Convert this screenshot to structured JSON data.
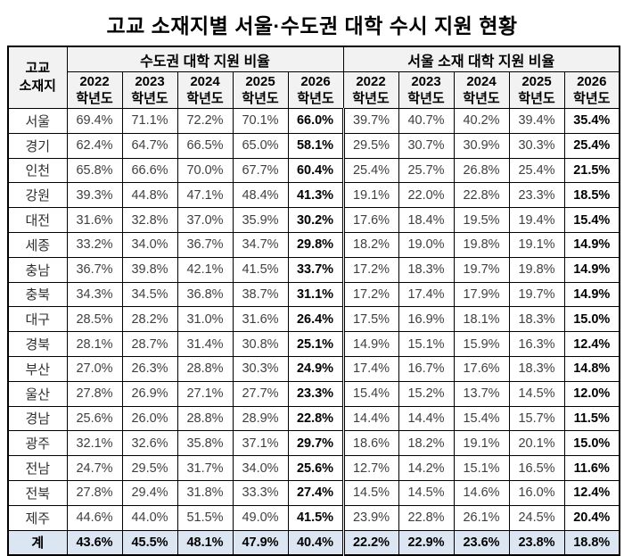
{
  "colors": {
    "header_bg": "#f2f2f2",
    "total_row_bg": "#dce6f2",
    "border": "#000000",
    "value_text": "#3f3f3f",
    "bold_text": "#000000"
  },
  "chart_data": {
    "type": "table",
    "title": "고교 소재지별 서울·수도권 대학 수시 지원 현황",
    "row_header": [
      "고교",
      "소재지"
    ],
    "column_groups": [
      "수도권 대학 지원 비율",
      "서울 소재 대학 지원 비율"
    ],
    "years": [
      "2022",
      "2023",
      "2024",
      "2025",
      "2026"
    ],
    "year_suffix": "학년도",
    "rows": [
      {
        "region": "서울",
        "metro": [
          "69.4%",
          "71.1%",
          "72.2%",
          "70.1%",
          "66.0%"
        ],
        "seoul": [
          "39.7%",
          "40.7%",
          "40.2%",
          "39.4%",
          "35.4%"
        ]
      },
      {
        "region": "경기",
        "metro": [
          "62.4%",
          "64.7%",
          "66.5%",
          "65.0%",
          "58.1%"
        ],
        "seoul": [
          "29.5%",
          "30.7%",
          "30.9%",
          "30.3%",
          "25.4%"
        ]
      },
      {
        "region": "인천",
        "metro": [
          "65.8%",
          "66.6%",
          "70.0%",
          "67.7%",
          "60.4%"
        ],
        "seoul": [
          "25.4%",
          "25.7%",
          "26.8%",
          "25.4%",
          "21.5%"
        ]
      },
      {
        "region": "강원",
        "metro": [
          "39.3%",
          "44.8%",
          "47.1%",
          "48.4%",
          "41.3%"
        ],
        "seoul": [
          "19.1%",
          "22.0%",
          "22.8%",
          "23.3%",
          "18.5%"
        ]
      },
      {
        "region": "대전",
        "metro": [
          "31.6%",
          "32.8%",
          "37.0%",
          "35.9%",
          "30.2%"
        ],
        "seoul": [
          "17.6%",
          "18.4%",
          "19.5%",
          "19.4%",
          "15.4%"
        ]
      },
      {
        "region": "세종",
        "metro": [
          "33.2%",
          "34.0%",
          "36.7%",
          "34.7%",
          "29.8%"
        ],
        "seoul": [
          "18.2%",
          "19.0%",
          "19.8%",
          "19.1%",
          "14.9%"
        ]
      },
      {
        "region": "충남",
        "metro": [
          "36.7%",
          "39.8%",
          "42.1%",
          "41.5%",
          "33.7%"
        ],
        "seoul": [
          "17.2%",
          "18.3%",
          "19.7%",
          "19.8%",
          "14.9%"
        ]
      },
      {
        "region": "충북",
        "metro": [
          "34.3%",
          "34.5%",
          "36.8%",
          "38.7%",
          "31.1%"
        ],
        "seoul": [
          "17.2%",
          "17.4%",
          "17.9%",
          "19.7%",
          "14.9%"
        ]
      },
      {
        "region": "대구",
        "metro": [
          "28.5%",
          "28.2%",
          "31.0%",
          "31.6%",
          "26.4%"
        ],
        "seoul": [
          "17.5%",
          "16.9%",
          "18.1%",
          "18.3%",
          "15.0%"
        ]
      },
      {
        "region": "경북",
        "metro": [
          "28.1%",
          "28.7%",
          "31.4%",
          "30.8%",
          "25.1%"
        ],
        "seoul": [
          "14.9%",
          "15.1%",
          "15.9%",
          "16.3%",
          "12.4%"
        ]
      },
      {
        "region": "부산",
        "metro": [
          "27.0%",
          "26.3%",
          "28.8%",
          "30.3%",
          "24.9%"
        ],
        "seoul": [
          "17.4%",
          "16.7%",
          "17.6%",
          "18.3%",
          "14.8%"
        ]
      },
      {
        "region": "울산",
        "metro": [
          "27.8%",
          "26.9%",
          "27.1%",
          "27.7%",
          "23.3%"
        ],
        "seoul": [
          "15.4%",
          "15.2%",
          "13.7%",
          "14.5%",
          "12.0%"
        ]
      },
      {
        "region": "경남",
        "metro": [
          "25.6%",
          "26.0%",
          "28.8%",
          "28.9%",
          "22.8%"
        ],
        "seoul": [
          "14.4%",
          "14.4%",
          "15.4%",
          "15.7%",
          "11.5%"
        ]
      },
      {
        "region": "광주",
        "metro": [
          "32.1%",
          "32.6%",
          "35.8%",
          "37.1%",
          "29.7%"
        ],
        "seoul": [
          "18.6%",
          "18.2%",
          "19.1%",
          "20.1%",
          "15.0%"
        ]
      },
      {
        "region": "전남",
        "metro": [
          "24.7%",
          "29.5%",
          "31.7%",
          "34.0%",
          "25.6%"
        ],
        "seoul": [
          "12.7%",
          "14.2%",
          "15.1%",
          "16.5%",
          "11.6%"
        ]
      },
      {
        "region": "전북",
        "metro": [
          "27.8%",
          "29.4%",
          "31.8%",
          "33.3%",
          "27.4%"
        ],
        "seoul": [
          "14.5%",
          "14.5%",
          "14.6%",
          "16.0%",
          "12.4%"
        ]
      },
      {
        "region": "제주",
        "metro": [
          "44.6%",
          "44.0%",
          "51.5%",
          "49.0%",
          "41.5%"
        ],
        "seoul": [
          "23.9%",
          "22.8%",
          "26.1%",
          "24.5%",
          "20.4%"
        ]
      }
    ],
    "total": {
      "region": "계",
      "metro": [
        "43.6%",
        "45.5%",
        "48.1%",
        "47.9%",
        "40.4%"
      ],
      "seoul": [
        "22.2%",
        "22.9%",
        "23.6%",
        "23.8%",
        "18.8%"
      ]
    }
  }
}
